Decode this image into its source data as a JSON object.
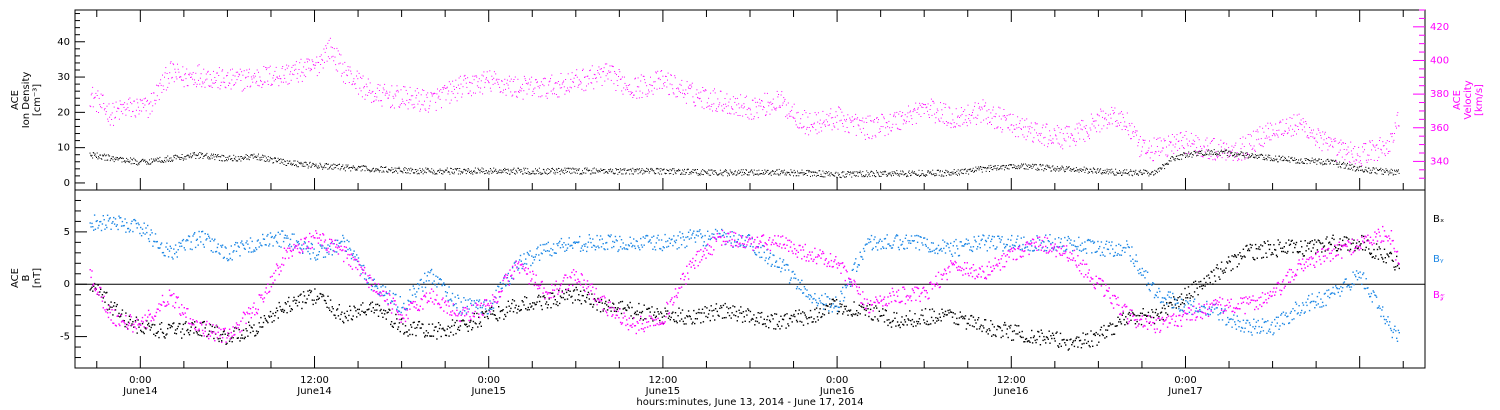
{
  "chart_data": [
    {
      "type": "scatter",
      "panel": "top",
      "ylabel_left": [
        "ACE",
        "Ion Density",
        "[cm⁻³]"
      ],
      "ylabel_right": [
        "ACE",
        "Velocity",
        "[km/s]"
      ],
      "ylim_left": [
        -2,
        49
      ],
      "ylim_right": [
        323,
        430
      ],
      "yticks_left": [
        0,
        10,
        20,
        30,
        40
      ],
      "yticks_right": [
        340,
        360,
        380,
        400,
        420
      ],
      "colors": {
        "density": "#000000",
        "velocity": "#ff00ff"
      },
      "series": [
        {
          "axis": "right",
          "color": "#ff00ff",
          "points": [
            [
              -3.5,
              380
            ],
            [
              -2,
              368
            ],
            [
              -1,
              372
            ],
            [
              0.5,
              372
            ],
            [
              2,
              393
            ],
            [
              3,
              390
            ],
            [
              4,
              392
            ],
            [
              6,
              388
            ],
            [
              8,
              390
            ],
            [
              10,
              392
            ],
            [
              12,
              396
            ],
            [
              13,
              408
            ],
            [
              14,
              394
            ],
            [
              16,
              380
            ],
            [
              18,
              378
            ],
            [
              20,
              376
            ],
            [
              22,
              384
            ],
            [
              24,
              388
            ],
            [
              26,
              384
            ],
            [
              28,
              384
            ],
            [
              30,
              388
            ],
            [
              32,
              392
            ],
            [
              34,
              384
            ],
            [
              36,
              388
            ],
            [
              38,
              380
            ],
            [
              40,
              376
            ],
            [
              42,
              372
            ],
            [
              44,
              376
            ],
            [
              46,
              362
            ],
            [
              48,
              366
            ],
            [
              50,
              360
            ],
            [
              52,
              364
            ],
            [
              54,
              372
            ],
            [
              56,
              366
            ],
            [
              58,
              370
            ],
            [
              60,
              362
            ],
            [
              62,
              356
            ],
            [
              64,
              354
            ],
            [
              66,
              364
            ],
            [
              67,
              368
            ],
            [
              68,
              362
            ],
            [
              69,
              346
            ],
            [
              70,
              348
            ],
            [
              72,
              352
            ],
            [
              74,
              347
            ],
            [
              76,
              348
            ],
            [
              78,
              360
            ],
            [
              80,
              362
            ],
            [
              82,
              348
            ],
            [
              84,
              344
            ],
            [
              86,
              350
            ],
            [
              86.7,
              366
            ]
          ]
        },
        {
          "axis": "left",
          "color": "#000000",
          "points": [
            [
              -3.5,
              8
            ],
            [
              0,
              6
            ],
            [
              4,
              8
            ],
            [
              6,
              7
            ],
            [
              8,
              7.5
            ],
            [
              10,
              6
            ],
            [
              12,
              5
            ],
            [
              14,
              4.5
            ],
            [
              16,
              4
            ],
            [
              20,
              3.5
            ],
            [
              24,
              3.5
            ],
            [
              28,
              3.5
            ],
            [
              32,
              3.5
            ],
            [
              36,
              3.5
            ],
            [
              40,
              3
            ],
            [
              44,
              3.2
            ],
            [
              48,
              2.5
            ],
            [
              52,
              2.8
            ],
            [
              56,
              3
            ],
            [
              58,
              4
            ],
            [
              60,
              5
            ],
            [
              62,
              4.5
            ],
            [
              64,
              4
            ],
            [
              66,
              3.5
            ],
            [
              68,
              3
            ],
            [
              70,
              3
            ],
            [
              71,
              7
            ],
            [
              72,
              8
            ],
            [
              74,
              9
            ],
            [
              76,
              8
            ],
            [
              78,
              7
            ],
            [
              80,
              6.5
            ],
            [
              82,
              6
            ],
            [
              84,
              4
            ],
            [
              86.7,
              3
            ]
          ]
        }
      ]
    },
    {
      "type": "scatter",
      "panel": "bottom",
      "ylabel": [
        "ACE",
        "B",
        "[nT]"
      ],
      "ylim": [
        -8,
        9
      ],
      "yticks": [
        -5,
        0,
        5
      ],
      "legend": [
        "Bₓ",
        "Bᵧ",
        "B_z"
      ],
      "legend_display": [
        "Bₓ",
        "Bᵧ",
        "B𝓏"
      ],
      "colors": {
        "Bx": "#000000",
        "By": "#1e88e5",
        "Bz": "#ff00ff"
      },
      "series": [
        {
          "name": "Bx",
          "color": "#000000",
          "points": [
            [
              -3.5,
              0
            ],
            [
              -2,
              -2
            ],
            [
              -1,
              -3.5
            ],
            [
              0,
              -4
            ],
            [
              2,
              -4.5
            ],
            [
              4,
              -4
            ],
            [
              6,
              -5
            ],
            [
              8,
              -4
            ],
            [
              10,
              -2
            ],
            [
              12,
              -1
            ],
            [
              14,
              -3
            ],
            [
              16,
              -2
            ],
            [
              18,
              -4
            ],
            [
              20,
              -4.5
            ],
            [
              22,
              -4
            ],
            [
              24,
              -3
            ],
            [
              26,
              -2
            ],
            [
              28,
              -1.5
            ],
            [
              30,
              -1
            ],
            [
              32,
              -2
            ],
            [
              34,
              -2.5
            ],
            [
              36,
              -3
            ],
            [
              38,
              -3
            ],
            [
              40,
              -2.5
            ],
            [
              42,
              -3
            ],
            [
              44,
              -3.5
            ],
            [
              46,
              -3
            ],
            [
              48,
              -2
            ],
            [
              50,
              -2.5
            ],
            [
              52,
              -3.5
            ],
            [
              54,
              -3
            ],
            [
              56,
              -3
            ],
            [
              58,
              -4
            ],
            [
              60,
              -4.5
            ],
            [
              62,
              -5
            ],
            [
              64,
              -5.5
            ],
            [
              66,
              -5
            ],
            [
              68,
              -3
            ],
            [
              70,
              -3
            ],
            [
              72,
              -1
            ],
            [
              74,
              1
            ],
            [
              76,
              3
            ],
            [
              78,
              3.5
            ],
            [
              80,
              3.5
            ],
            [
              82,
              4
            ],
            [
              84,
              4
            ],
            [
              86.7,
              2
            ]
          ]
        },
        {
          "name": "By",
          "color": "#1e88e5",
          "points": [
            [
              -3.5,
              6
            ],
            [
              -2,
              6
            ],
            [
              0,
              5.5
            ],
            [
              2,
              3
            ],
            [
              4,
              4.5
            ],
            [
              6,
              3
            ],
            [
              8,
              4
            ],
            [
              10,
              4.5
            ],
            [
              12,
              3
            ],
            [
              14,
              4
            ],
            [
              16,
              0
            ],
            [
              18,
              -2
            ],
            [
              20,
              1
            ],
            [
              22,
              -2
            ],
            [
              24,
              -2
            ],
            [
              26,
              2
            ],
            [
              28,
              3.5
            ],
            [
              30,
              4
            ],
            [
              32,
              4
            ],
            [
              34,
              4
            ],
            [
              36,
              4
            ],
            [
              38,
              4.5
            ],
            [
              40,
              4.5
            ],
            [
              42,
              4
            ],
            [
              44,
              2
            ],
            [
              46,
              -1
            ],
            [
              48,
              -2
            ],
            [
              50,
              4
            ],
            [
              52,
              4
            ],
            [
              54,
              4
            ],
            [
              56,
              3.5
            ],
            [
              58,
              4
            ],
            [
              60,
              4
            ],
            [
              62,
              4
            ],
            [
              64,
              4
            ],
            [
              66,
              3.5
            ],
            [
              68,
              3.5
            ],
            [
              70,
              -1
            ],
            [
              72,
              -2
            ],
            [
              74,
              -2.5
            ],
            [
              76,
              -4
            ],
            [
              78,
              -4
            ],
            [
              80,
              -2
            ],
            [
              82,
              -1
            ],
            [
              84,
              1
            ],
            [
              86,
              -4
            ],
            [
              86.7,
              -5
            ]
          ]
        },
        {
          "name": "Bz",
          "color": "#ff00ff",
          "points": [
            [
              -3.5,
              1
            ],
            [
              -2,
              -3
            ],
            [
              0,
              -4
            ],
            [
              2,
              -1
            ],
            [
              4,
              -4
            ],
            [
              6,
              -5
            ],
            [
              8,
              -2
            ],
            [
              10,
              3
            ],
            [
              12,
              4.5
            ],
            [
              14,
              3
            ],
            [
              16,
              0
            ],
            [
              18,
              -3
            ],
            [
              20,
              -1
            ],
            [
              22,
              -3
            ],
            [
              24,
              -2
            ],
            [
              26,
              2
            ],
            [
              28,
              -1
            ],
            [
              30,
              1
            ],
            [
              32,
              -2
            ],
            [
              34,
              -4
            ],
            [
              36,
              -3
            ],
            [
              38,
              2
            ],
            [
              40,
              4.5
            ],
            [
              42,
              4
            ],
            [
              44,
              4
            ],
            [
              46,
              3
            ],
            [
              48,
              2
            ],
            [
              50,
              -2
            ],
            [
              52,
              -1
            ],
            [
              54,
              -1
            ],
            [
              56,
              2
            ],
            [
              58,
              1
            ],
            [
              60,
              3
            ],
            [
              62,
              4
            ],
            [
              64,
              3
            ],
            [
              66,
              0
            ],
            [
              68,
              -3
            ],
            [
              70,
              -4
            ],
            [
              72,
              -3
            ],
            [
              74,
              -2
            ],
            [
              76,
              -2
            ],
            [
              78,
              -1
            ],
            [
              80,
              2
            ],
            [
              82,
              3
            ],
            [
              84,
              4
            ],
            [
              86,
              5
            ],
            [
              86.7,
              2
            ]
          ]
        }
      ]
    }
  ],
  "x_axis": {
    "range_hours": [
      -4.5,
      88.5
    ],
    "ticks": [
      {
        "h": 0,
        "time": "0:00",
        "date": "June14"
      },
      {
        "h": 12,
        "time": "12:00",
        "date": "June14"
      },
      {
        "h": 24,
        "time": "0:00",
        "date": "June15"
      },
      {
        "h": 36,
        "time": "12:00",
        "date": "June15"
      },
      {
        "h": 48,
        "time": "0:00",
        "date": "June16"
      },
      {
        "h": 60,
        "time": "12:00",
        "date": "June16"
      },
      {
        "h": 72,
        "time": "0:00",
        "date": "June17"
      }
    ],
    "label": "hours:minutes, June 13, 2014 - June 17, 2014"
  }
}
